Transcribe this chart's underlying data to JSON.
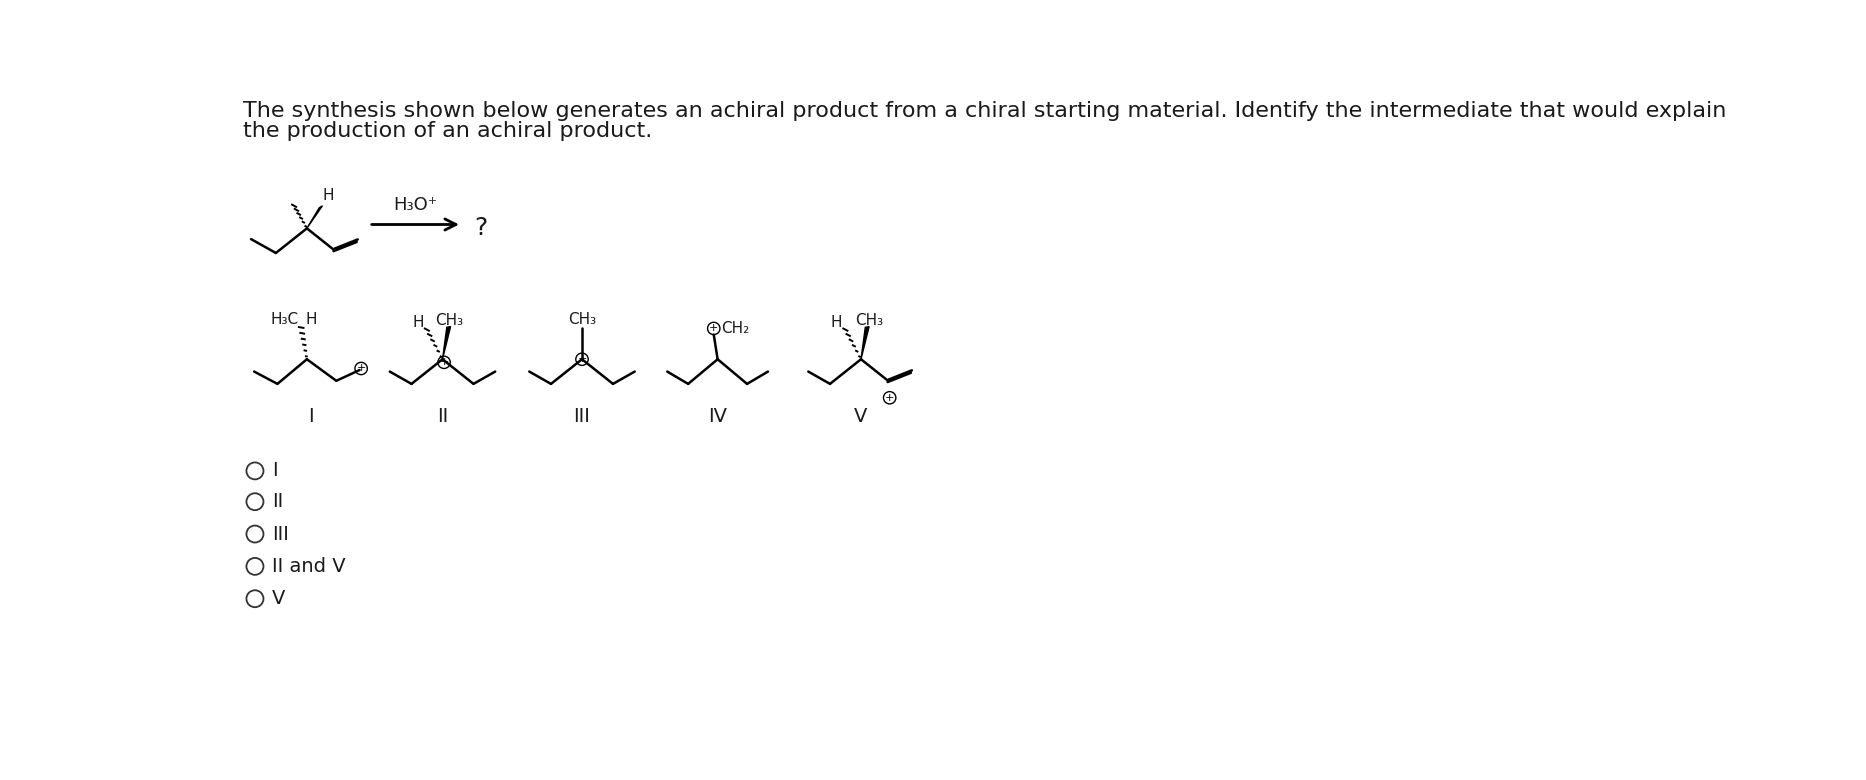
{
  "title_line1": "The synthesis shown below generates an achiral product from a chiral starting material. Identify the intermediate that would explain",
  "title_line2": "the production of an achiral product.",
  "reagent": "H₃O⁺",
  "question_mark": "?",
  "answer_options": [
    "I",
    "II",
    "III",
    "II and V",
    "V"
  ],
  "bg_color": "#ffffff",
  "text_color": "#1a1a1a",
  "font_size_title": 16,
  "font_size_struct": 11,
  "font_size_roman": 14,
  "font_size_options": 14
}
